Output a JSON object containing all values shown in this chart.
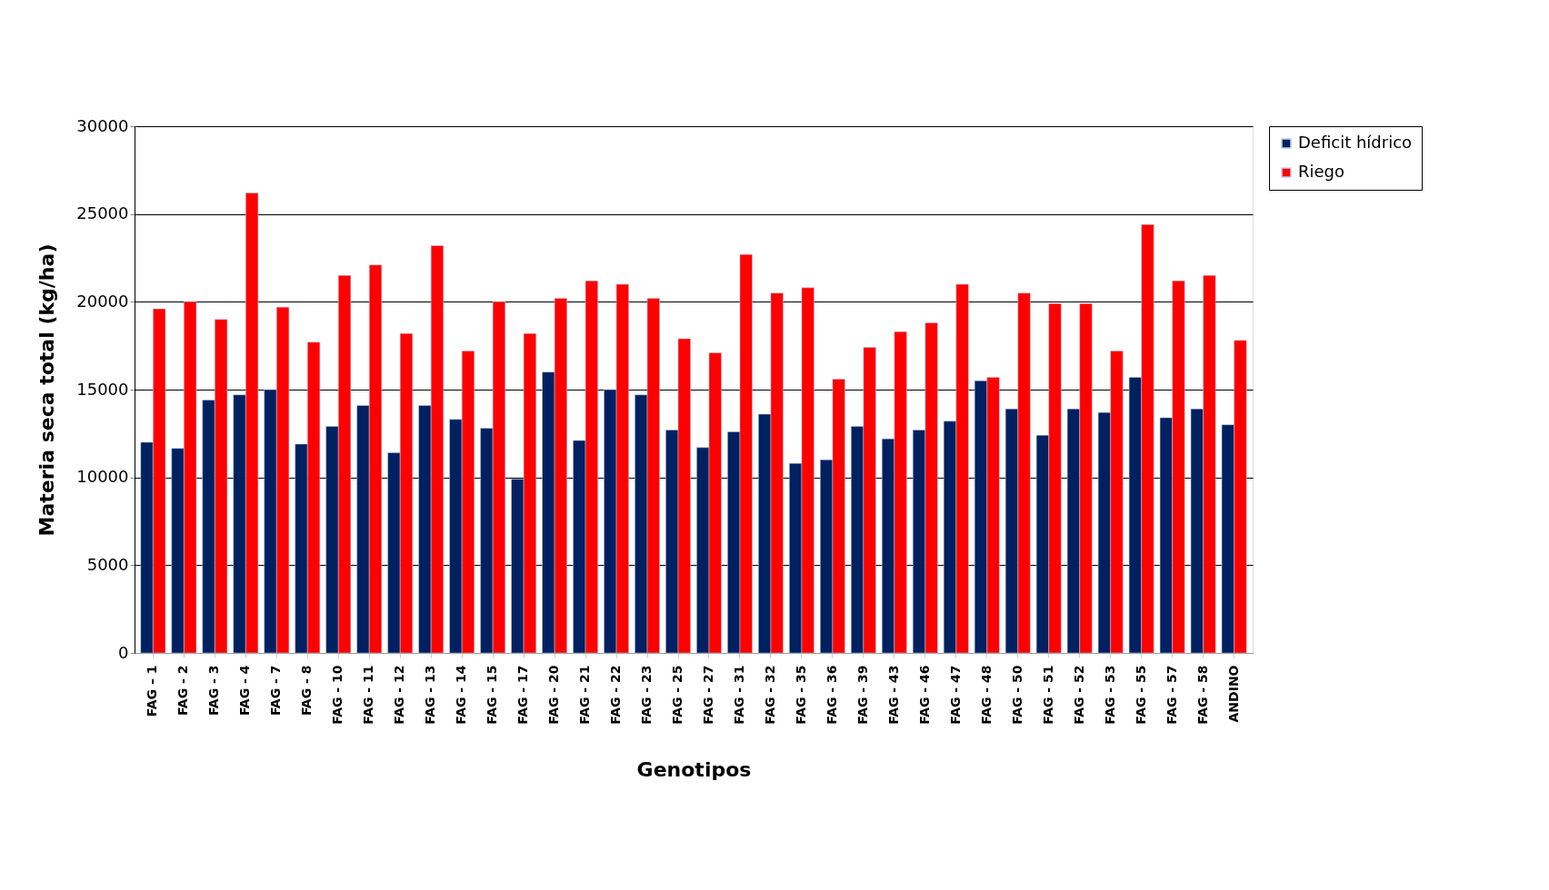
{
  "chart_data": {
    "type": "bar",
    "xlabel": "Genotipos",
    "ylabel": "Materia seca total  (kg/ha)",
    "categories": [
      "FAG – 1",
      "FAG - 2",
      "FAG - 3",
      "FAG - 4",
      "FAG - 7",
      "FAG - 8",
      "FAG - 10",
      "FAG - 11",
      "FAG - 12",
      "FAG - 13",
      "FAG - 14",
      "FAG - 15",
      "FAG - 17",
      "FAG - 20",
      "FAG - 21",
      "FAG - 22",
      "FAG - 23",
      "FAG - 25",
      "FAG - 27",
      "FAG - 31",
      "FAG - 32",
      "FAG - 35",
      "FAG - 36",
      "FAG - 39",
      "FAG - 43",
      "FAG - 46",
      "FAG - 47",
      "FAG - 48",
      "FAG - 50",
      "FAG - 51",
      "FAG - 52",
      "FAG - 53",
      "FAG - 55",
      "FAG - 57",
      "FAG - 58",
      "ANDINO"
    ],
    "series": [
      {
        "name": "Deficit hídrico",
        "color": "#002060",
        "values": [
          12000,
          11650,
          14400,
          14700,
          15000,
          11900,
          12900,
          14100,
          11400,
          14100,
          13300,
          12800,
          9900,
          16000,
          12100,
          15000,
          14700,
          12700,
          11700,
          12600,
          13600,
          10800,
          11000,
          12900,
          12200,
          12700,
          13200,
          15500,
          13900,
          12400,
          13900,
          13700,
          15700,
          13400,
          13900,
          13000
        ]
      },
      {
        "name": "Riego",
        "color": "#ff0000",
        "values": [
          19600,
          20000,
          19000,
          26200,
          19700,
          17700,
          21500,
          22100,
          18200,
          23200,
          17200,
          20000,
          18200,
          20200,
          21200,
          21000,
          20200,
          17900,
          17100,
          22700,
          20500,
          20800,
          15600,
          17400,
          18300,
          18800,
          21000,
          15700,
          20500,
          19900,
          19900,
          17200,
          24400,
          21200,
          21500,
          17800
        ]
      }
    ],
    "ylim": [
      0,
      30000
    ],
    "yticks": [
      0,
      5000,
      10000,
      15000,
      20000,
      25000,
      30000
    ],
    "grid": "y",
    "legend": "right"
  }
}
